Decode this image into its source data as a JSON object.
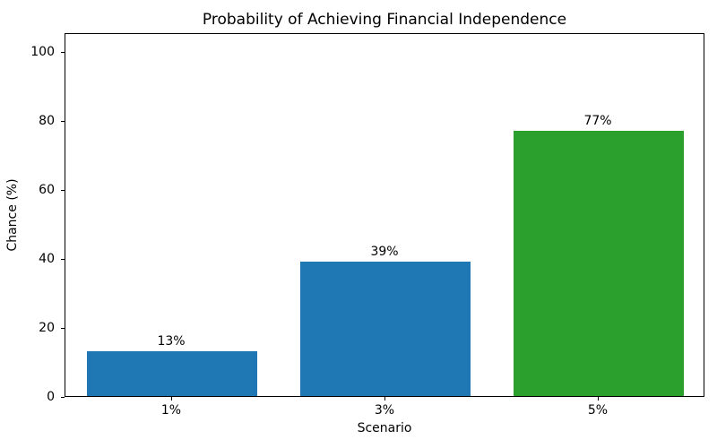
{
  "chart_data": {
    "type": "bar",
    "title": "Probability of Achieving Financial Independence",
    "xlabel": "Scenario",
    "ylabel": "Chance (%)",
    "categories": [
      "1%",
      "3%",
      "5%"
    ],
    "values": [
      13,
      39,
      77
    ],
    "value_labels": [
      "13%",
      "39%",
      "77%"
    ],
    "bar_colors": [
      "#1f77b4",
      "#1f77b4",
      "#2ca02c"
    ],
    "yticks": [
      0,
      20,
      40,
      60,
      80,
      100
    ],
    "ylim": [
      0,
      105.5
    ],
    "grid": false,
    "legend": "none",
    "bar_width_fraction": 0.8,
    "axis_color": "#000000",
    "background_color": "#ffffff"
  }
}
